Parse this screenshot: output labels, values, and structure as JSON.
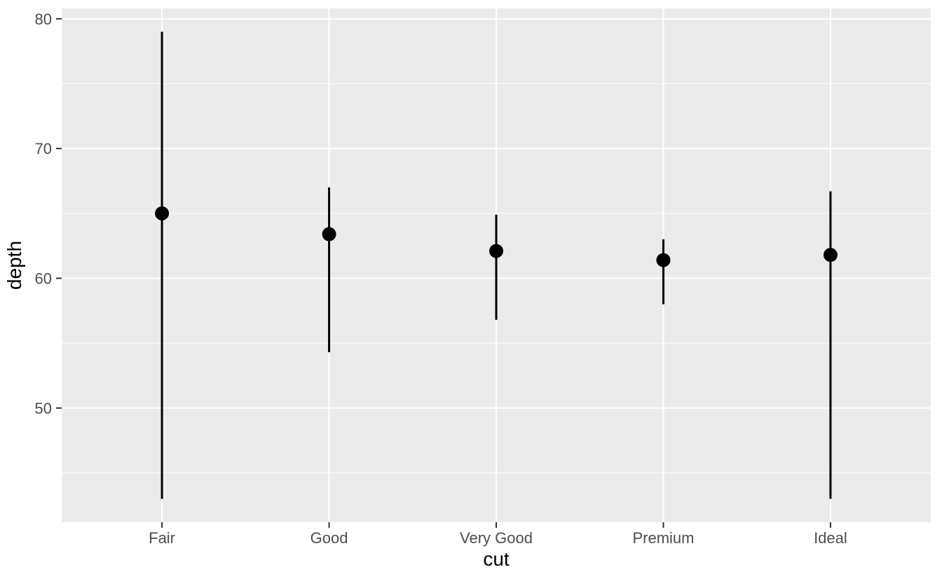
{
  "chart_data": {
    "type": "pointrange",
    "title": "",
    "xlabel": "cut",
    "ylabel": "depth",
    "categories": [
      "Fair",
      "Good",
      "Very Good",
      "Premium",
      "Ideal"
    ],
    "series": [
      {
        "name": "depth-summary",
        "points": [
          {
            "category": "Fair",
            "median": 65.0,
            "min": 43.0,
            "max": 79.0
          },
          {
            "category": "Good",
            "median": 63.4,
            "min": 54.3,
            "max": 67.0
          },
          {
            "category": "Very Good",
            "median": 62.1,
            "min": 56.8,
            "max": 64.9
          },
          {
            "category": "Premium",
            "median": 61.4,
            "min": 58.0,
            "max": 63.0
          },
          {
            "category": "Ideal",
            "median": 61.8,
            "min": 43.0,
            "max": 66.7
          }
        ]
      }
    ],
    "y_major_ticks": [
      50,
      60,
      70,
      80
    ],
    "y_minor_ticks": [
      45,
      55,
      65,
      75
    ],
    "y_tick_labels": [
      "50",
      "60",
      "70",
      "80"
    ],
    "ylim": [
      41.2,
      80.8
    ],
    "grid": "on",
    "legend": "none",
    "colors": {
      "page_bg": "#FFFFFF",
      "panel_bg": "#EBEBEB",
      "grid": "#FFFFFF",
      "point": "#000000",
      "range_line": "#000000",
      "tick_mark": "#333333",
      "tick_label": "#4D4D4D",
      "axis_title": "#000000"
    }
  }
}
